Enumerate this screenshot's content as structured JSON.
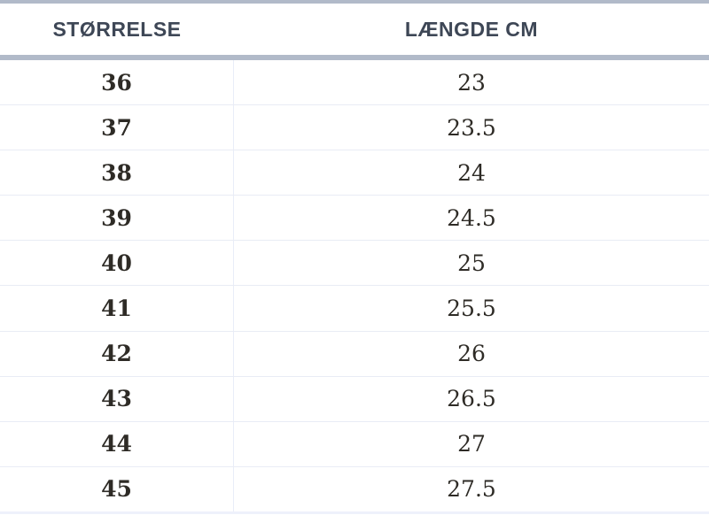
{
  "table": {
    "header": {
      "size_label": "STØRRELSE",
      "length_label": "LÆNGDE CM"
    },
    "rows": [
      {
        "size": "36",
        "length_cm": "23"
      },
      {
        "size": "37",
        "length_cm": "23.5"
      },
      {
        "size": "38",
        "length_cm": "24"
      },
      {
        "size": "39",
        "length_cm": "24.5"
      },
      {
        "size": "40",
        "length_cm": "25"
      },
      {
        "size": "41",
        "length_cm": "25.5"
      },
      {
        "size": "42",
        "length_cm": "26"
      },
      {
        "size": "43",
        "length_cm": "26.5"
      },
      {
        "size": "44",
        "length_cm": "27"
      },
      {
        "size": "45",
        "length_cm": "27.5"
      }
    ]
  },
  "colors": {
    "header_text": "#3e4756",
    "body_text": "#2e2b26",
    "accent_band": "#b1bac9",
    "row_divider": "#e9ecf5",
    "column_divider": "#e9edf8",
    "bottom_border": "#eef1fb",
    "background": "#ffffff"
  },
  "chart_data": {
    "type": "table",
    "title": "",
    "columns": [
      "STØRRELSE",
      "LÆNGDE CM"
    ],
    "rows": [
      [
        "36",
        "23"
      ],
      [
        "37",
        "23.5"
      ],
      [
        "38",
        "24"
      ],
      [
        "39",
        "24.5"
      ],
      [
        "40",
        "25"
      ],
      [
        "41",
        "25.5"
      ],
      [
        "42",
        "26"
      ],
      [
        "43",
        "26.5"
      ],
      [
        "44",
        "27"
      ],
      [
        "45",
        "27.5"
      ]
    ]
  }
}
